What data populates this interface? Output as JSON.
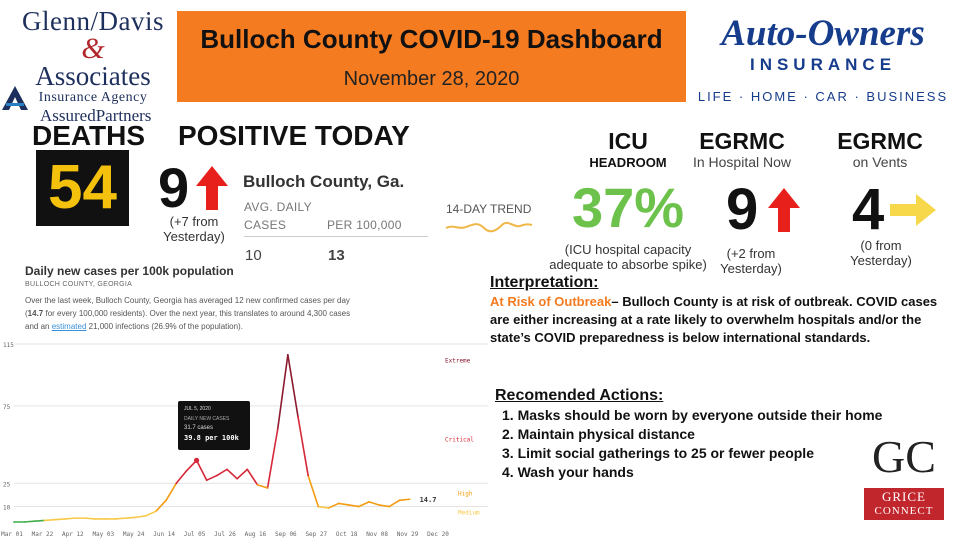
{
  "logos": {
    "glenn_davis": {
      "line1": "Glenn/Davis",
      "amp": "&",
      "line2": "Associates",
      "line3": "Insurance Agency",
      "line4": "AssuredPartners"
    },
    "auto_owners": {
      "brand": "Auto-Owners",
      "insurance": "INSURANCE",
      "tagline": "LIFE · HOME · CAR · BUSINESS"
    },
    "grice": {
      "letters": "GC",
      "line1": "GRICE",
      "line2": "CONNECT"
    }
  },
  "header": {
    "title": "Bulloch County COVID-19 Dashboard",
    "date": "November 28, 2020",
    "color": "#f47b20"
  },
  "deaths": {
    "label": "DEATHS",
    "value": "54"
  },
  "positive_today": {
    "label": "POSITIVE TODAY",
    "value": "9",
    "trend": "up",
    "note_line1": "(+7  from",
    "note_line2": "Yesterday)"
  },
  "county_stats": {
    "title": "Bulloch County, Ga.",
    "col1_header_line1": "AVG. DAILY",
    "col1_header_line2": "CASES",
    "col2_header": "PER 100,000",
    "col1_value": "10",
    "col2_value": "13",
    "trend_label": "14-DAY TREND"
  },
  "icu": {
    "label": "ICU",
    "sublabel": "HEADROOM",
    "value": "37%",
    "note_line1": "(ICU hospital capacity",
    "note_line2": "adequate to absorbe spike)"
  },
  "egrmc_hospital": {
    "label": "EGRMC",
    "sublabel": "In Hospital Now",
    "value": "9",
    "trend": "up",
    "note_line1": "(+2 from",
    "note_line2": "Yesterday)"
  },
  "egrmc_vents": {
    "label": "EGRMC",
    "sublabel": "on Vents",
    "value": "4",
    "trend": "flat",
    "note_line1": "(0 from",
    "note_line2": "Yesterday)"
  },
  "chart_panel": {
    "title": "Daily new cases per 100k population",
    "subtitle": "BULLOCH COUNTY, GEORGIA",
    "desc_part1": "Over the last week, Bulloch County, Georgia has averaged 12 new confirmed cases per day (",
    "desc_bold": "14.7",
    "desc_part2": " for every 100,000 residents). Over the next year, this translates to around 4,300 cases and an ",
    "desc_link": "estimated",
    "desc_part3": " 21,000 infections (26.9% of the population).",
    "tooltip": {
      "date": "JUL 5, 2020",
      "label": "DAILY NEW CASES",
      "cases": "31.7 cases",
      "per100k": "39.8 per 100k"
    }
  },
  "chart_data": {
    "type": "line",
    "title": "Daily new cases per 100k population",
    "x_ticks": [
      "Mar 01",
      "Mar 22",
      "Apr 12",
      "May 03",
      "May 24",
      "Jun 14",
      "Jul 05",
      "Jul 26",
      "Aug 16",
      "Sep 06",
      "Sep 27",
      "Oct 18",
      "Nov 08",
      "Nov 29",
      "Dec 20"
    ],
    "y_ticks": [
      "115",
      "75",
      "25",
      "10"
    ],
    "zones": [
      "Extreme",
      "Critical",
      "High",
      "Medium"
    ],
    "current_value_label": "14.7",
    "ylim": [
      0,
      115
    ],
    "series": [
      {
        "x": [
          "Mar 01",
          "Mar 08",
          "Mar 15",
          "Mar 22",
          "Mar 29",
          "Apr 05",
          "Apr 12",
          "Apr 19",
          "Apr 26",
          "May 03",
          "May 10",
          "May 17",
          "May 24",
          "May 31",
          "Jun 07",
          "Jun 14",
          "Jun 21",
          "Jun 28",
          "Jul 05",
          "Jul 12",
          "Jul 19",
          "Jul 26",
          "Aug 02",
          "Aug 09",
          "Aug 16",
          "Aug 23",
          "Aug 30",
          "Sep 06",
          "Sep 13",
          "Sep 20",
          "Sep 27",
          "Oct 04",
          "Oct 11",
          "Oct 18",
          "Oct 25",
          "Nov 01",
          "Nov 08",
          "Nov 15",
          "Nov 22",
          "Nov 29"
        ],
        "y": [
          0,
          0,
          0.5,
          1,
          1.5,
          2,
          2.5,
          2.5,
          2,
          2,
          2,
          2.5,
          3,
          4,
          7,
          14,
          25,
          33,
          39.8,
          27,
          30,
          34,
          28,
          34,
          24,
          22,
          60,
          108,
          68,
          30,
          10,
          9,
          12,
          11,
          10,
          13,
          11,
          10,
          14,
          14.7
        ]
      }
    ],
    "colors": {
      "low": "#3fae49",
      "medium": "#f7c948",
      "high": "#f39c12",
      "critical": "#d62839",
      "extreme": "#8b1a2f"
    }
  },
  "interpretation": {
    "heading": "Interpretation:",
    "risk_label": "At Risk of Outbreak",
    "body": "– Bulloch County is at risk of outbreak. COVID cases are either increasing at a rate likely to overwhelm hospitals and/or the state’s COVID preparedness is below international standards."
  },
  "actions": {
    "heading": "Recomended Actions:",
    "items": [
      "Masks should be worn by everyone outside their home",
      "Maintain physical distance",
      "Limit social gatherings to 25 or fewer people",
      "Wash your hands"
    ]
  }
}
